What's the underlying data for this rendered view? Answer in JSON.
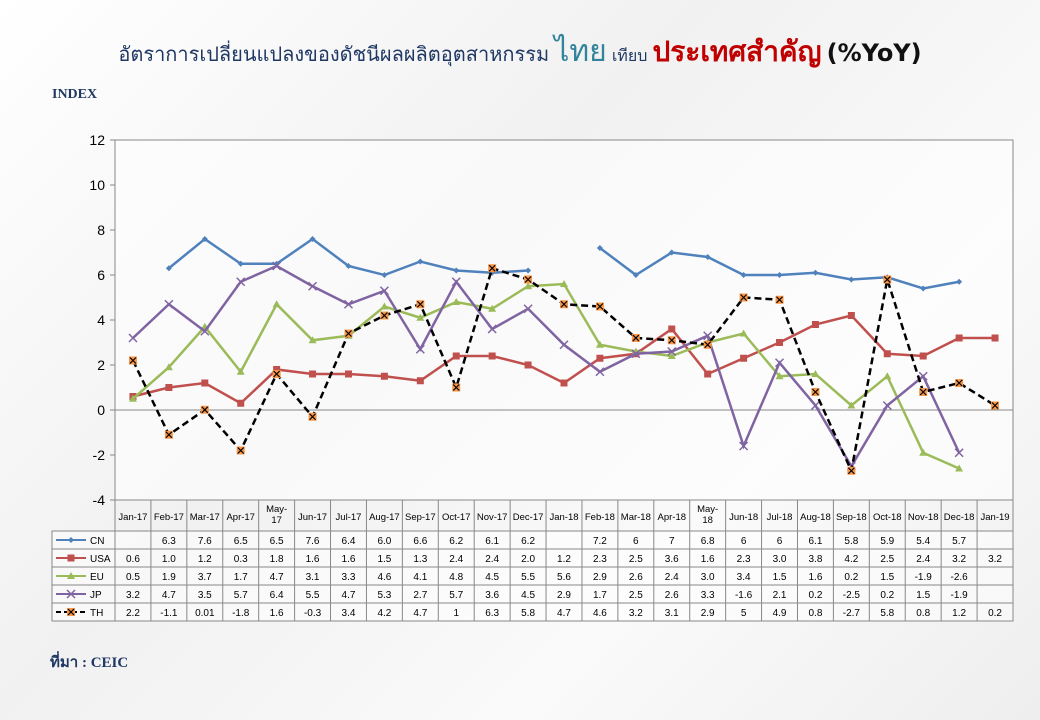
{
  "title": {
    "part1": "อัตราการเปลี่ยนแปลงของดัชนีผลผลิตอุตสาหกรรม",
    "part2": "ไทย",
    "part3": "เทียบ",
    "part4": "ประเทศสำคัญ",
    "part5": "(%YoY)"
  },
  "source": "ที่มา : CEIC",
  "chart_data": {
    "type": "line",
    "ylabel": "INDEX",
    "ylim": [
      -4,
      12
    ],
    "yticks": [
      -4,
      -2,
      0,
      2,
      4,
      6,
      8,
      10,
      12
    ],
    "grid": false,
    "legend": "data-table",
    "categories": [
      "Jan-17",
      "Feb-17",
      "Mar-17",
      "Apr-17",
      "May-17",
      "Jun-17",
      "Jul-17",
      "Aug-17",
      "Sep-17",
      "Oct-17",
      "Nov-17",
      "Dec-17",
      "Jan-18",
      "Feb-18",
      "Mar-18",
      "Apr-18",
      "May-18",
      "Jun-18",
      "Jul-18",
      "Aug-18",
      "Sep-18",
      "Oct-18",
      "Nov-18",
      "Dec-18",
      "Jan-19"
    ],
    "series": [
      {
        "name": "CN",
        "color": "#4F81BD",
        "marker": "diamond",
        "values": [
          null,
          6.3,
          7.6,
          6.5,
          6.5,
          7.6,
          6.4,
          6.0,
          6.6,
          6.2,
          6.1,
          6.2,
          null,
          7.2,
          6,
          7,
          6.8,
          6,
          6,
          6.1,
          5.8,
          5.9,
          5.4,
          5.7,
          null
        ],
        "labels": [
          "",
          "6.3",
          "7.6",
          "6.5",
          "6.5",
          "7.6",
          "6.4",
          "6.0",
          "6.6",
          "6.2",
          "6.1",
          "6.2",
          "",
          "7.2",
          "6",
          "7",
          "6.8",
          "6",
          "6",
          "6.1",
          "5.8",
          "5.9",
          "5.4",
          "5.7",
          ""
        ]
      },
      {
        "name": "USA",
        "color": "#C0504D",
        "marker": "square",
        "values": [
          0.6,
          1.0,
          1.2,
          0.3,
          1.8,
          1.6,
          1.6,
          1.5,
          1.3,
          2.4,
          2.4,
          2.0,
          1.2,
          2.3,
          2.5,
          3.6,
          1.6,
          2.3,
          3.0,
          3.8,
          4.2,
          2.5,
          2.4,
          3.2,
          3.2
        ],
        "labels": [
          "0.6",
          "1.0",
          "1.2",
          "0.3",
          "1.8",
          "1.6",
          "1.6",
          "1.5",
          "1.3",
          "2.4",
          "2.4",
          "2.0",
          "1.2",
          "2.3",
          "2.5",
          "3.6",
          "1.6",
          "2.3",
          "3.0",
          "3.8",
          "4.2",
          "2.5",
          "2.4",
          "3.2",
          "3.2"
        ]
      },
      {
        "name": "EU",
        "color": "#9BBB59",
        "marker": "triangle",
        "values": [
          0.5,
          1.9,
          3.7,
          1.7,
          4.7,
          3.1,
          3.3,
          4.6,
          4.1,
          4.8,
          4.5,
          5.5,
          5.6,
          2.9,
          2.6,
          2.4,
          3.0,
          3.4,
          1.5,
          1.6,
          0.2,
          1.5,
          -1.9,
          -2.6,
          null
        ],
        "labels": [
          "0.5",
          "1.9",
          "3.7",
          "1.7",
          "4.7",
          "3.1",
          "3.3",
          "4.6",
          "4.1",
          "4.8",
          "4.5",
          "5.5",
          "5.6",
          "2.9",
          "2.6",
          "2.4",
          "3.0",
          "3.4",
          "1.5",
          "1.6",
          "0.2",
          "1.5",
          "-1.9",
          "-2.6",
          ""
        ]
      },
      {
        "name": "JP",
        "color": "#8064A2",
        "marker": "x",
        "values": [
          3.2,
          4.7,
          3.5,
          5.7,
          6.4,
          5.5,
          4.7,
          5.3,
          2.7,
          5.7,
          3.6,
          4.5,
          2.9,
          1.7,
          2.5,
          2.6,
          3.3,
          -1.6,
          2.1,
          0.2,
          -2.5,
          0.2,
          1.5,
          -1.9,
          null
        ],
        "labels": [
          "3.2",
          "4.7",
          "3.5",
          "5.7",
          "6.4",
          "5.5",
          "4.7",
          "5.3",
          "2.7",
          "5.7",
          "3.6",
          "4.5",
          "2.9",
          "1.7",
          "2.5",
          "2.6",
          "3.3",
          "-1.6",
          "2.1",
          "0.2",
          "-2.5",
          "0.2",
          "1.5",
          "-1.9",
          ""
        ]
      },
      {
        "name": "TH",
        "color": "#000000",
        "marker_color": "#F79646",
        "marker": "star",
        "dashed": true,
        "values": [
          2.2,
          -1.1,
          0.01,
          -1.8,
          1.6,
          -0.3,
          3.4,
          4.2,
          4.7,
          1,
          6.3,
          5.8,
          4.7,
          4.6,
          3.2,
          3.1,
          2.9,
          5,
          4.9,
          0.8,
          -2.7,
          5.8,
          0.8,
          1.2,
          0.2
        ],
        "labels": [
          "2.2",
          "-1.1",
          "0.01",
          "-1.8",
          "1.6",
          "-0.3",
          "3.4",
          "4.2",
          "4.7",
          "1",
          "6.3",
          "5.8",
          "4.7",
          "4.6",
          "3.2",
          "3.1",
          "2.9",
          "5",
          "4.9",
          "0.8",
          "-2.7",
          "5.8",
          "0.8",
          "1.2",
          "0.2"
        ]
      }
    ]
  }
}
